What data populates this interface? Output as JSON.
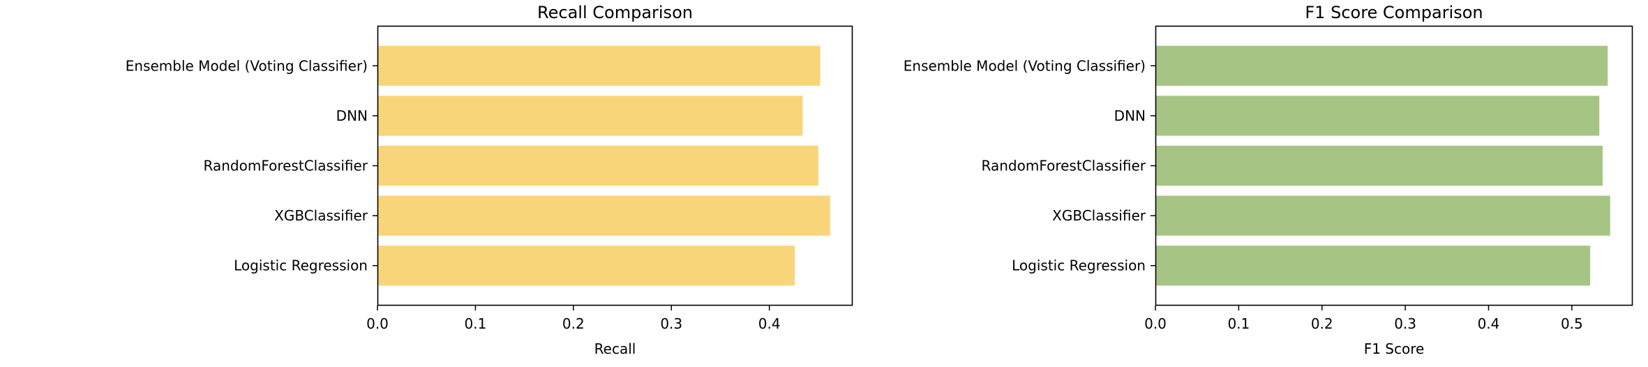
{
  "chart_data": [
    {
      "type": "bar",
      "orientation": "horizontal",
      "title": "Recall Comparison",
      "xlabel": "Recall",
      "ylabel": "",
      "categories": [
        "Logistic Regression",
        "XGBClassifier",
        "RandomForestClassifier",
        "DNN",
        "Ensemble Model (Voting Classifier)"
      ],
      "values": [
        0.426,
        0.462,
        0.45,
        0.434,
        0.452
      ],
      "xlim": [
        0,
        0.485
      ],
      "xticks": [
        "0.0",
        "0.1",
        "0.2",
        "0.3",
        "0.4"
      ],
      "color": "#f9d57a",
      "grid": false
    },
    {
      "type": "bar",
      "orientation": "horizontal",
      "title": "F1 Score Comparison",
      "xlabel": "F1 Score",
      "ylabel": "",
      "categories": [
        "Logistic Regression",
        "XGBClassifier",
        "RandomForestClassifier",
        "DNN",
        "Ensemble Model (Voting Classifier)"
      ],
      "values": [
        0.522,
        0.546,
        0.537,
        0.533,
        0.543
      ],
      "xlim": [
        0,
        0.573
      ],
      "xticks": [
        "0.0",
        "0.1",
        "0.2",
        "0.3",
        "0.4",
        "0.5"
      ],
      "color": "#a6c585",
      "grid": false
    }
  ]
}
